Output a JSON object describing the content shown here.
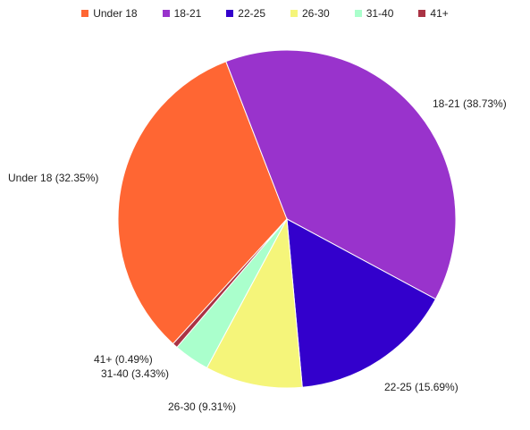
{
  "chart_data": {
    "type": "pie",
    "legend_position": "top",
    "slices": [
      {
        "label": "Under 18",
        "value": 32.35,
        "display": "Under 18 (32.35%)",
        "color": "#ff6633"
      },
      {
        "label": "18-21",
        "value": 38.73,
        "display": "18-21 (38.73%)",
        "color": "#9933cc"
      },
      {
        "label": "22-25",
        "value": 15.69,
        "display": "22-25 (15.69%)",
        "color": "#3300cc"
      },
      {
        "label": "26-30",
        "value": 9.31,
        "display": "26-30 (9.31%)",
        "color": "#f5f57a"
      },
      {
        "label": "31-40",
        "value": 3.43,
        "display": "31-40 (3.43%)",
        "color": "#aaffcc"
      },
      {
        "label": "41+",
        "value": 0.49,
        "display": "41+ (0.49%)",
        "color": "#aa3344"
      }
    ]
  }
}
